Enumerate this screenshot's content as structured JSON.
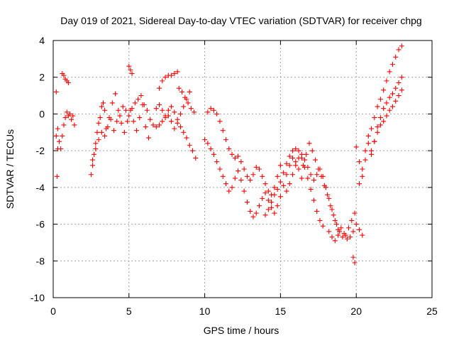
{
  "chart_data": {
    "type": "scatter",
    "title": "Day 019 of 2021, Sidereal Day-to-day VTEC variation (SDTVAR) for receiver chpg",
    "xlabel": "GPS time / hours",
    "ylabel": "SDTVAR / TECUs",
    "xlim": [
      0,
      25
    ],
    "ylim": [
      -10,
      4
    ],
    "xticks": [
      0,
      5,
      10,
      15,
      20,
      25
    ],
    "yticks": [
      -10,
      -8,
      -6,
      -4,
      -2,
      0,
      2,
      4
    ],
    "xtick_labels": [
      "0",
      "5",
      "10",
      "15",
      "20",
      "25"
    ],
    "ytick_labels": [
      "-10",
      "-8",
      "-6",
      "-4",
      "-2",
      "0",
      "2",
      "4"
    ],
    "grid": true,
    "marker": "+",
    "color": "#ff0000",
    "series": [
      {
        "name": "s1",
        "x": [
          0.2,
          0.3,
          0.4,
          0.5,
          0.6,
          0.7,
          0.8,
          0.9,
          1.0,
          1.1,
          1.2,
          1.3,
          1.4
        ],
        "y": [
          -1.2,
          -0.8,
          -1.5,
          -1.9,
          -1.2,
          -0.6,
          -0.2,
          0.1,
          -0.1,
          0.0,
          -0.3,
          -0.1,
          -0.6
        ]
      },
      {
        "name": "s2",
        "x": [
          0.2,
          0.3
        ],
        "y": [
          1.2,
          -1.9
        ]
      },
      {
        "name": "s3",
        "x": [
          0.6,
          0.7,
          0.8,
          0.9,
          1.0
        ],
        "y": [
          2.2,
          2.1,
          1.9,
          1.8,
          1.7
        ]
      },
      {
        "name": "s4",
        "x": [
          0.25
        ],
        "y": [
          -3.4
        ]
      },
      {
        "name": "s5",
        "x": [
          2.5,
          2.6,
          2.7,
          2.8,
          2.9,
          3.0,
          3.1,
          3.2,
          3.3,
          3.4
        ],
        "y": [
          -3.3,
          -2.8,
          -2.2,
          -1.6,
          -1.0,
          -0.5,
          -0.2,
          0.4,
          0.6,
          0.2
        ]
      },
      {
        "name": "s6",
        "x": [
          2.6,
          2.8,
          3.0,
          3.2,
          3.4,
          3.6,
          3.8,
          4.0,
          4.2,
          4.4,
          4.6,
          4.8,
          5.0,
          5.2,
          5.4,
          5.6,
          5.8,
          6.0,
          6.2,
          6.4,
          6.6
        ],
        "y": [
          -2.5,
          -1.9,
          -1.4,
          -1.0,
          -1.2,
          -0.7,
          -0.3,
          -0.9,
          -0.4,
          -0.1,
          0.4,
          0.2,
          -0.1,
          0.3,
          0.6,
          0.8,
          1.0,
          0.5,
          0.2,
          -0.3,
          -0.6
        ]
      },
      {
        "name": "s7",
        "x": [
          3.5,
          3.7,
          3.9,
          4.1,
          4.3,
          4.5,
          4.7,
          4.9,
          5.1,
          5.3,
          5.5,
          5.7,
          5.9,
          6.1,
          6.3
        ],
        "y": [
          -0.8,
          -0.2,
          0.6,
          1.1,
          0.2,
          -0.5,
          -1.0,
          -0.4,
          0.2,
          -0.4,
          -0.9,
          -0.2,
          0.5,
          -0.7,
          -1.3
        ]
      },
      {
        "name": "s8",
        "x": [
          5.0,
          5.1,
          5.2
        ],
        "y": [
          2.6,
          2.4,
          2.2
        ]
      },
      {
        "name": "s9",
        "x": [
          7.0,
          7.2,
          7.4,
          7.6,
          7.8,
          8.0,
          8.2
        ],
        "y": [
          1.4,
          1.8,
          2.0,
          2.1,
          2.1,
          2.2,
          2.3
        ]
      },
      {
        "name": "s10",
        "x": [
          6.8,
          7.0,
          7.2,
          7.4,
          7.6,
          7.8,
          8.0,
          8.2,
          8.4,
          8.6,
          8.8,
          9.0,
          9.2,
          9.4
        ],
        "y": [
          0.3,
          0.5,
          0.2,
          -0.1,
          0.2,
          0.4,
          0.1,
          -0.3,
          -0.7,
          -1.0,
          -1.3,
          -1.7,
          -2.0,
          -2.4
        ]
      },
      {
        "name": "s11",
        "x": [
          6.8,
          7.0,
          7.2,
          7.4,
          7.6,
          7.8,
          8.0,
          8.2,
          8.4,
          8.6,
          8.8,
          9.0
        ],
        "y": [
          -0.7,
          -0.6,
          -0.4,
          -0.2,
          -0.1,
          -0.4,
          -0.8,
          -0.5,
          0.0,
          0.4,
          0.8,
          1.2
        ]
      },
      {
        "name": "s12",
        "x": [
          8.3,
          8.5,
          8.7,
          8.9,
          9.1,
          9.3
        ],
        "y": [
          1.4,
          1.2,
          0.9,
          0.6,
          0.3,
          0.1
        ]
      },
      {
        "name": "s13",
        "x": [
          10.2,
          10.4,
          10.6,
          10.8,
          11.0,
          11.2,
          11.4,
          11.6,
          11.8,
          12.0,
          12.2,
          12.4,
          12.6,
          12.8,
          13.0,
          13.2,
          13.4,
          13.6,
          13.8,
          14.0,
          14.2,
          14.4,
          14.6,
          14.8,
          15.0
        ],
        "y": [
          0.1,
          0.3,
          0.2,
          0.0,
          -0.4,
          -0.9,
          -1.4,
          -1.9,
          -2.2,
          -2.4,
          -2.3,
          -2.6,
          -3.0,
          -3.4,
          -3.6,
          -3.3,
          -2.9,
          -3.0,
          -3.4,
          -3.8,
          -4.2,
          -4.4,
          -4.0,
          -3.4,
          -2.8
        ]
      },
      {
        "name": "s14",
        "x": [
          10.0,
          10.2,
          10.4,
          10.6,
          10.8,
          11.0,
          11.2,
          11.4,
          11.6,
          11.8,
          12.0,
          12.2,
          12.4,
          12.6,
          12.8,
          13.0,
          13.2,
          13.4,
          13.6,
          13.8,
          14.0,
          14.2,
          14.4,
          14.6,
          14.8,
          15.0,
          15.2,
          15.4,
          15.6,
          15.8,
          16.0,
          16.2,
          16.4
        ],
        "y": [
          -1.4,
          -1.6,
          -1.9,
          -2.2,
          -2.6,
          -3.0,
          -3.4,
          -3.8,
          -4.2,
          -4.0,
          -3.5,
          -3.1,
          -3.6,
          -4.2,
          -4.8,
          -5.3,
          -5.6,
          -5.4,
          -5.0,
          -4.6,
          -4.3,
          -4.7,
          -5.1,
          -5.4,
          -5.0,
          -4.5,
          -3.9,
          -3.3,
          -2.8,
          -2.4,
          -2.6,
          -3.0,
          -3.5
        ]
      },
      {
        "name": "s15",
        "x": [
          14.0,
          14.2,
          14.4,
          14.6,
          14.8,
          15.0,
          15.2,
          15.4,
          15.6,
          15.8,
          16.0,
          16.2,
          16.4,
          16.6,
          16.8,
          17.0,
          17.2,
          17.4,
          17.6,
          17.8
        ],
        "y": [
          -5.5,
          -5.2,
          -4.8,
          -4.4,
          -4.1,
          -3.7,
          -3.2,
          -2.7,
          -2.3,
          -2.0,
          -1.9,
          -2.0,
          -2.4,
          -2.9,
          -3.5,
          -4.1,
          -4.7,
          -5.3,
          -5.8,
          -6.1
        ]
      },
      {
        "name": "s16",
        "x": [
          15.4,
          15.6,
          15.8,
          16.0,
          16.2,
          16.4,
          16.6,
          16.8,
          17.0,
          17.2,
          17.4,
          17.6,
          17.8,
          18.0,
          18.2,
          18.4,
          18.6,
          18.8
        ],
        "y": [
          -4.2,
          -3.8,
          -3.3,
          -2.8,
          -2.4,
          -2.2,
          -2.5,
          -2.9,
          -3.3,
          -3.6,
          -3.3,
          -3.0,
          -3.4,
          -4.0,
          -4.6,
          -5.2,
          -5.8,
          -6.3
        ]
      },
      {
        "name": "s17",
        "x": [
          16.5,
          16.7,
          16.9,
          17.1,
          17.3,
          17.5,
          17.7,
          17.9,
          18.1,
          18.3,
          18.5,
          18.7,
          18.9,
          19.1,
          19.3,
          19.5,
          19.7,
          19.9
        ],
        "y": [
          -2.8,
          -2.2,
          -1.6,
          -2.0,
          -2.5,
          -3.0,
          -3.4,
          -3.9,
          -4.4,
          -5.0,
          -5.5,
          -6.0,
          -6.4,
          -6.7,
          -6.6,
          -6.2,
          -5.8,
          -5.4
        ]
      },
      {
        "name": "s18",
        "x": [
          18.2,
          18.4,
          18.6,
          18.8,
          19.0,
          19.2,
          19.4,
          19.6,
          19.8
        ],
        "y": [
          -6.4,
          -6.7,
          -6.9,
          -6.6,
          -6.2,
          -6.5,
          -6.8,
          -6.7,
          -6.4
        ]
      },
      {
        "name": "s19",
        "x": [
          19.8,
          19.9
        ],
        "y": [
          -7.8,
          -8.1
        ]
      },
      {
        "name": "s20",
        "x": [
          20.0,
          20.2,
          20.4
        ],
        "y": [
          -6.0,
          -6.3,
          -6.6
        ]
      },
      {
        "name": "s21",
        "x": [
          20.0,
          20.2,
          20.4,
          20.6,
          20.8,
          21.0,
          21.2,
          21.4,
          21.6,
          21.8,
          22.0,
          22.2,
          22.4,
          22.6,
          22.8,
          23.0
        ],
        "y": [
          -1.8,
          -2.6,
          -3.4,
          -2.5,
          -1.6,
          -0.8,
          -0.2,
          0.4,
          0.8,
          1.3,
          1.8,
          2.3,
          2.7,
          3.1,
          3.5,
          3.7
        ]
      },
      {
        "name": "s22",
        "x": [
          20.2,
          20.4,
          20.6,
          20.8,
          21.0,
          21.2,
          21.4,
          21.6,
          21.8,
          22.0,
          22.2,
          22.4,
          22.6,
          22.8,
          23.0
        ],
        "y": [
          -3.8,
          -3.0,
          -2.0,
          -1.2,
          -2.2,
          -1.5,
          -0.7,
          -0.2,
          0.3,
          0.6,
          0.9,
          1.1,
          1.4,
          1.7,
          2.0
        ]
      },
      {
        "name": "s23",
        "x": [
          21.0,
          21.2,
          21.4,
          21.6,
          21.8,
          22.0,
          22.2,
          22.4,
          22.6,
          22.8,
          23.0
        ],
        "y": [
          -2.0,
          -1.5,
          -1.0,
          -0.6,
          -0.4,
          -0.1,
          0.2,
          0.4,
          0.7,
          1.0,
          1.3
        ]
      }
    ]
  }
}
